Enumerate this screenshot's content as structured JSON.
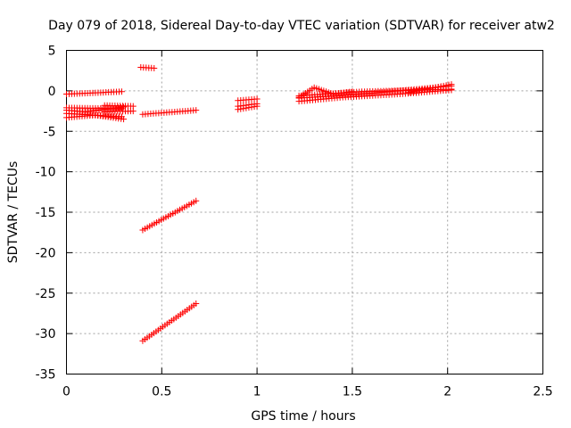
{
  "chart_data": {
    "type": "scatter",
    "title": "Day 079 of 2018, Sidereal Day-to-day VTEC variation (SDTVAR) for receiver atw2",
    "xlabel": "GPS time / hours",
    "ylabel": "SDTVAR / TECUs",
    "xlim": [
      0,
      2.5
    ],
    "ylim": [
      -35,
      5
    ],
    "xticks": [
      0,
      0.5,
      1,
      1.5,
      2,
      2.5
    ],
    "xtick_labels": [
      "0",
      "0.5",
      "1",
      "1.5",
      "2",
      "2.5"
    ],
    "yticks": [
      5,
      0,
      -5,
      -10,
      -15,
      -20,
      -25,
      -30,
      -35
    ],
    "ytick_labels": [
      "5",
      "0",
      "-5",
      "-10",
      "-15",
      "-20",
      "-25",
      "-30",
      "-35"
    ],
    "grid": true,
    "marker": "+",
    "marker_color": "#ff0000",
    "series": [
      {
        "x": [
          0.0,
          0.29
        ],
        "y": [
          -0.4,
          -0.1
        ]
      },
      {
        "x": [
          0.0,
          0.29
        ],
        "y": [
          -2.1,
          -2.2
        ]
      },
      {
        "x": [
          0.0,
          0.29
        ],
        "y": [
          -2.8,
          -3.2
        ]
      },
      {
        "x": [
          0.0,
          0.1,
          0.2,
          0.3
        ],
        "y": [
          -2.4,
          -2.6,
          -2.3,
          -2.0
        ]
      },
      {
        "x": [
          0.0,
          0.15,
          0.3
        ],
        "y": [
          -3.3,
          -3.0,
          -3.5
        ]
      },
      {
        "x": [
          0.2,
          0.35
        ],
        "y": [
          -1.8,
          -1.9
        ]
      },
      {
        "x": [
          0.2,
          0.35
        ],
        "y": [
          -2.6,
          -2.5
        ]
      },
      {
        "x": [
          0.39,
          0.46
        ],
        "y": [
          2.9,
          2.8
        ]
      },
      {
        "x": [
          0.4,
          0.68
        ],
        "y": [
          -2.9,
          -2.4
        ]
      },
      {
        "x": [
          0.4,
          0.68
        ],
        "y": [
          -17.2,
          -13.6
        ]
      },
      {
        "x": [
          0.4,
          0.68
        ],
        "y": [
          -30.9,
          -26.3
        ]
      },
      {
        "x": [
          0.9,
          1.0
        ],
        "y": [
          -1.2,
          -1.0
        ]
      },
      {
        "x": [
          0.9,
          1.0
        ],
        "y": [
          -1.9,
          -1.6
        ]
      },
      {
        "x": [
          0.9,
          1.0
        ],
        "y": [
          -2.3,
          -1.9
        ]
      },
      {
        "x": [
          1.22,
          1.55,
          2.02
        ],
        "y": [
          -0.6,
          -0.1,
          0.2
        ]
      },
      {
        "x": [
          1.22,
          1.45,
          1.75,
          2.02
        ],
        "y": [
          -1.3,
          -0.8,
          -0.4,
          0.1
        ]
      },
      {
        "x": [
          1.22,
          1.6,
          2.02
        ],
        "y": [
          -0.9,
          -0.3,
          0.6
        ]
      },
      {
        "x": [
          1.22,
          1.3,
          1.4,
          1.5
        ],
        "y": [
          -0.8,
          0.4,
          -0.4,
          -0.1
        ]
      },
      {
        "x": [
          1.8,
          2.02
        ],
        "y": [
          -0.2,
          0.8
        ]
      }
    ]
  }
}
